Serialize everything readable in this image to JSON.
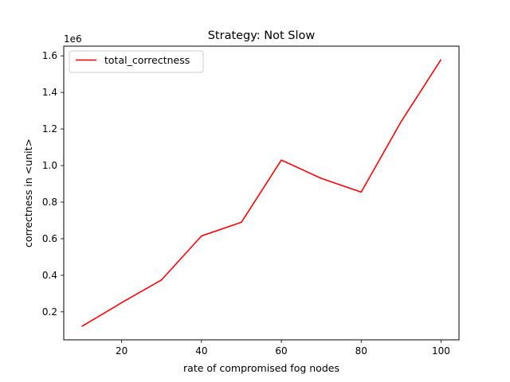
{
  "chart_data": {
    "type": "line",
    "title": "Strategy: Not Slow",
    "xlabel": "rate of compromised fog nodes",
    "ylabel": "correctness in <unit>",
    "y_offset_label": "1e6",
    "xlim": [
      5.5,
      104.5
    ],
    "ylim": [
      0.047,
      1.653
    ],
    "x_ticks": [
      20,
      40,
      60,
      80,
      100
    ],
    "x_tick_labels": [
      "20",
      "40",
      "60",
      "80",
      "100"
    ],
    "y_ticks": [
      0.2,
      0.4,
      0.6,
      0.8,
      1.0,
      1.2,
      1.4,
      1.6
    ],
    "y_tick_labels": [
      "0.2",
      "0.4",
      "0.6",
      "0.8",
      "1.0",
      "1.2",
      "1.4",
      "1.6"
    ],
    "grid": false,
    "legend_position": "upper-left",
    "series": [
      {
        "name": "total_correctness",
        "color": "#ff0000",
        "x": [
          10,
          20,
          30,
          40,
          50,
          60,
          70,
          80,
          90,
          100
        ],
        "y": [
          0.12,
          0.25,
          0.375,
          0.615,
          0.69,
          1.03,
          0.93,
          0.855,
          1.24,
          1.58
        ]
      }
    ]
  }
}
